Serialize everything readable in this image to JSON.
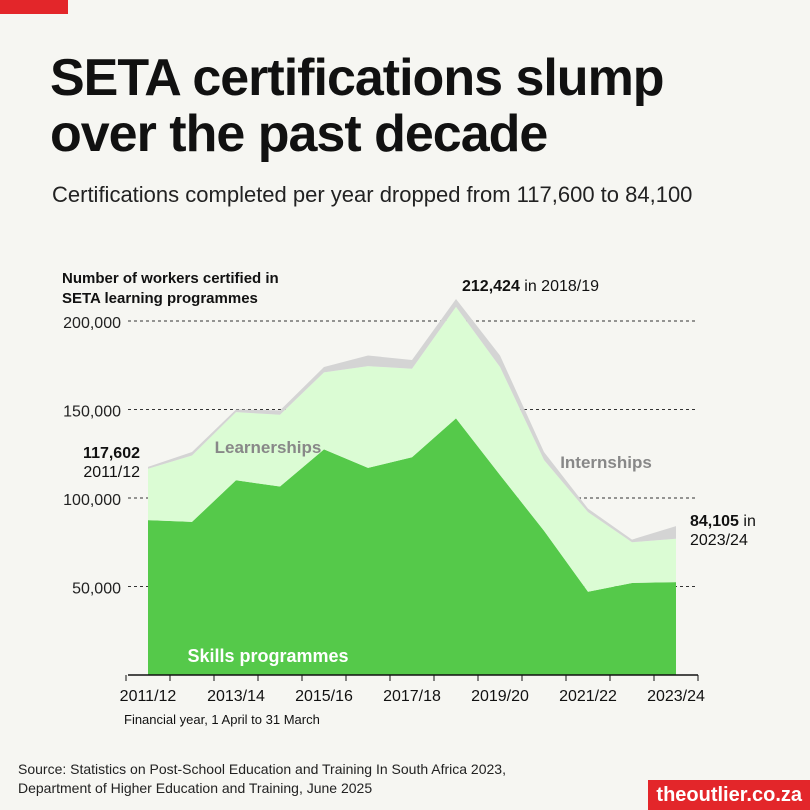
{
  "title_lines": [
    "SETA certifications slump",
    "over the past decade"
  ],
  "subtitle": "Certifications completed per year dropped from 117,600 to 84,100",
  "source_lines": [
    "Source: Statistics on Post-School Education and Training In South Africa 2023,",
    "Department of Higher Education and Training, June 2025"
  ],
  "brand": "theoutlier.co.za",
  "colors": {
    "accent": "#e3262a",
    "skills": "#55c94a",
    "learnerships": "#dbfcd4",
    "internships": "#d4d4d4",
    "background": "#f6f6f2"
  },
  "chart_data": {
    "type": "area",
    "stacked": true,
    "ylabel_lines": [
      "Number of workers certified in",
      "SETA learning programmes"
    ],
    "xlabel": "Financial year, 1 April to 31 March",
    "x": [
      "2011/12",
      "2012/13",
      "2013/14",
      "2014/15",
      "2015/16",
      "2016/17",
      "2017/18",
      "2018/19",
      "2019/20",
      "2020/21",
      "2021/22",
      "2022/23",
      "2023/24"
    ],
    "x_tick_labels": [
      "2011/12",
      "2013/14",
      "2015/16",
      "2017/18",
      "2019/20",
      "2021/22",
      "2023/24"
    ],
    "y_ticks": [
      50000,
      100000,
      150000,
      200000
    ],
    "y_tick_labels": [
      "50,000",
      "100,000",
      "150,000",
      "200,000"
    ],
    "ylim": [
      0,
      215000
    ],
    "grid": "horizontal dashed",
    "series": [
      {
        "name": "Skills programmes",
        "values": [
          87500,
          86500,
          110000,
          106500,
          127500,
          117000,
          123000,
          145000,
          113000,
          81500,
          47000,
          52000,
          52500
        ]
      },
      {
        "name": "Learnerships",
        "values": [
          29000,
          37500,
          38500,
          40500,
          43500,
          57500,
          50000,
          63000,
          61000,
          40000,
          45000,
          23000,
          24500
        ]
      },
      {
        "name": "Internships",
        "values": [
          1102,
          2000,
          1500,
          2500,
          3000,
          6000,
          5000,
          4424,
          6500,
          4500,
          2000,
          1500,
          7105
        ]
      }
    ],
    "annotations": {
      "start": {
        "value": "117,602",
        "label": "2011/12"
      },
      "peak": {
        "value": "212,424",
        "label": "in 2018/19"
      },
      "end": {
        "value": "84,105",
        "label_in": "in",
        "label_year": "2023/24"
      }
    }
  }
}
